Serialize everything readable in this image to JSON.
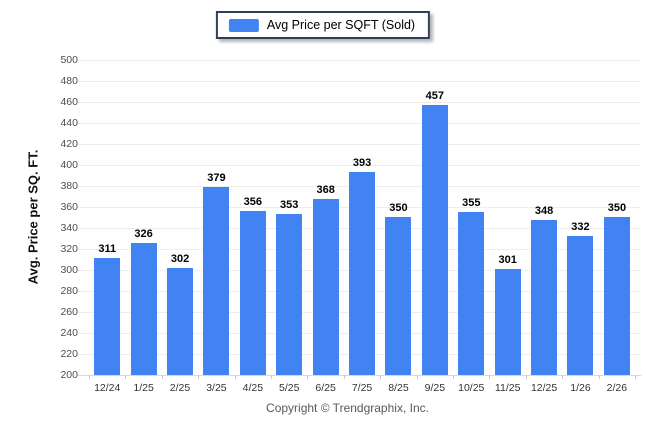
{
  "legend": {
    "label": "Avg Price per SQFT (Sold)"
  },
  "footer": {
    "copyright": "Copyright © Trendgraphix, Inc."
  },
  "chart_data": {
    "type": "bar",
    "title": "",
    "xlabel": "",
    "ylabel": "Avg. Price per SQ. FT.",
    "legend_entries": [
      "Avg Price per SQFT (Sold)"
    ],
    "legend_position": "top-center",
    "categories": [
      "12/24",
      "1/25",
      "2/25",
      "3/25",
      "4/25",
      "5/25",
      "6/25",
      "7/25",
      "8/25",
      "9/25",
      "10/25",
      "11/25",
      "12/25",
      "1/26",
      "2/26"
    ],
    "values": [
      311,
      326,
      302,
      379,
      356,
      353,
      368,
      393,
      350,
      457,
      355,
      301,
      348,
      332,
      350
    ],
    "ylim": [
      200,
      500
    ],
    "ytick_step": 20,
    "grid": true,
    "value_labels_shown": true,
    "colors": {
      "bar": "#4183F2",
      "legend_border": "#2F3F5E",
      "gridline": "#EDEDED",
      "baseline": "#D9D9D9",
      "tick_text": "#4D4D4D",
      "value_label": "#000000",
      "footer_text": "#595959"
    }
  }
}
